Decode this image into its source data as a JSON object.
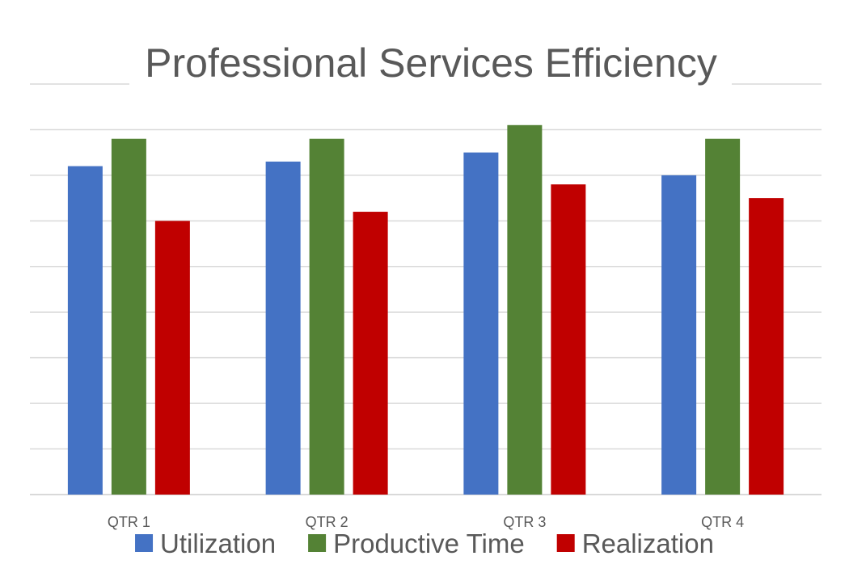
{
  "chart_data": {
    "type": "bar",
    "title": "Professional Services Efficiency",
    "categories": [
      "QTR 1",
      "QTR 2",
      "QTR 3",
      "QTR 4"
    ],
    "series": [
      {
        "name": "Utilization",
        "color": "#4472c4",
        "values": [
          72,
          73,
          75,
          70
        ]
      },
      {
        "name": "Productive Time",
        "color": "#548235",
        "values": [
          78,
          78,
          81,
          78
        ]
      },
      {
        "name": "Realization",
        "color": "#c00000",
        "values": [
          60,
          62,
          68,
          65
        ]
      }
    ],
    "ylim": [
      0,
      90
    ],
    "y_gridline_step": 10,
    "y_tick_labels_shown": false,
    "grid": true,
    "legend_position": "bottom"
  }
}
